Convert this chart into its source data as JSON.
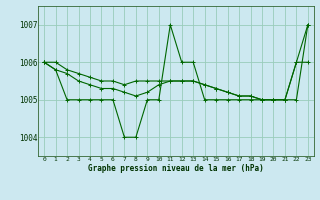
{
  "title": "Graphe pression niveau de la mer (hPa)",
  "bg_color": "#cce8f0",
  "grid_color": "#99ccbb",
  "line_color": "#006600",
  "xlim": [
    -0.5,
    23.5
  ],
  "ylim": [
    1003.5,
    1007.5
  ],
  "yticks": [
    1004,
    1005,
    1006,
    1007
  ],
  "xticks": [
    0,
    1,
    2,
    3,
    4,
    5,
    6,
    7,
    8,
    9,
    10,
    11,
    12,
    13,
    14,
    15,
    16,
    17,
    18,
    19,
    20,
    21,
    22,
    23
  ],
  "series": [
    [
      1006.0,
      1006.0,
      1005.8,
      1005.7,
      1005.6,
      1005.5,
      1005.5,
      1005.4,
      1005.5,
      1005.5,
      1005.5,
      1005.5,
      1005.5,
      1005.5,
      1005.4,
      1005.3,
      1005.2,
      1005.1,
      1005.1,
      1005.0,
      1005.0,
      1005.0,
      1006.0,
      1007.0
    ],
    [
      1006.0,
      1005.8,
      1005.0,
      1005.0,
      1005.0,
      1005.0,
      1005.0,
      1004.0,
      1004.0,
      1005.0,
      1005.0,
      1007.0,
      1006.0,
      1006.0,
      1005.0,
      1005.0,
      1005.0,
      1005.0,
      1005.0,
      1005.0,
      1005.0,
      1005.0,
      1005.0,
      1007.0
    ],
    [
      1006.0,
      1005.8,
      1005.7,
      1005.5,
      1005.4,
      1005.3,
      1005.3,
      1005.2,
      1005.1,
      1005.2,
      1005.4,
      1005.5,
      1005.5,
      1005.5,
      1005.4,
      1005.3,
      1005.2,
      1005.1,
      1005.1,
      1005.0,
      1005.0,
      1005.0,
      1006.0,
      1006.0
    ]
  ],
  "figsize": [
    3.2,
    2.0
  ],
  "dpi": 100
}
